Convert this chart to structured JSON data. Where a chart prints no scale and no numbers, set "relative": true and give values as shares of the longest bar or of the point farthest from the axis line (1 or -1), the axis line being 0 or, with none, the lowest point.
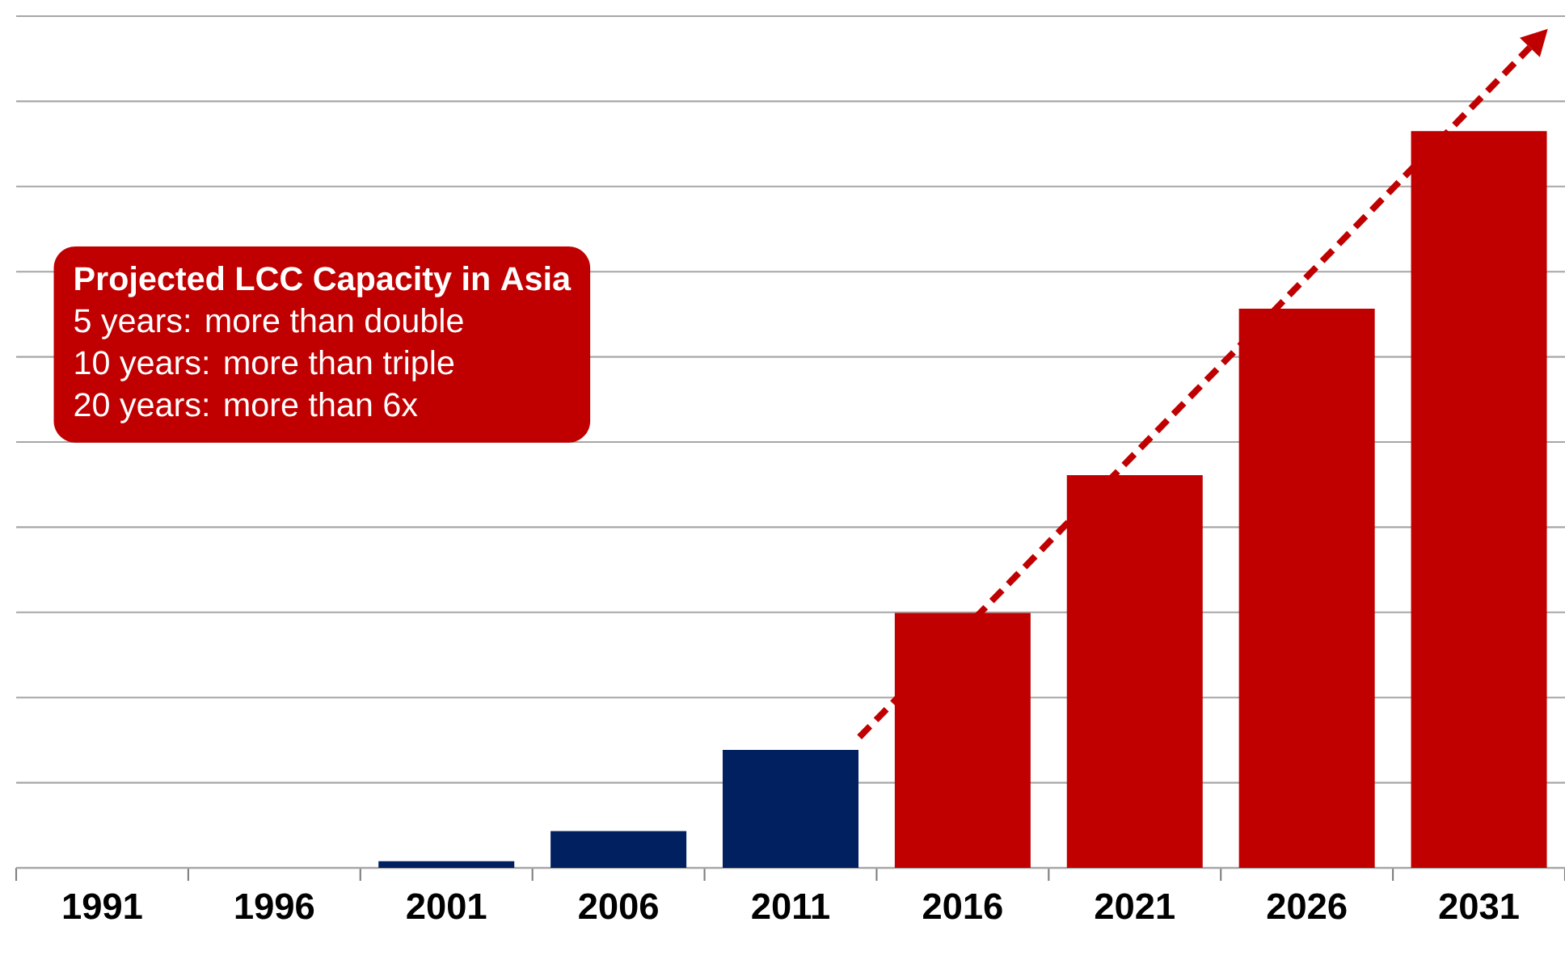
{
  "chart_data": {
    "type": "bar",
    "relative": true,
    "grid": "y",
    "categories": [
      "1991",
      "1996",
      "2001",
      "2006",
      "2011",
      "2016",
      "2021",
      "2026",
      "2031"
    ],
    "values": [
      0,
      0,
      0.009,
      0.05,
      0.16,
      0.346,
      0.533,
      0.759,
      1
    ],
    "colors": [
      "#002060",
      "#002060",
      "#002060",
      "#002060",
      "#002060",
      "#c00000",
      "#c00000",
      "#c00000",
      "#c00000"
    ],
    "annotations": [
      "Projected LCC Capacity in Asia",
      "5 years:   more than double",
      "10 years:  more than triple",
      "20 years:  more than 6x"
    ]
  }
}
